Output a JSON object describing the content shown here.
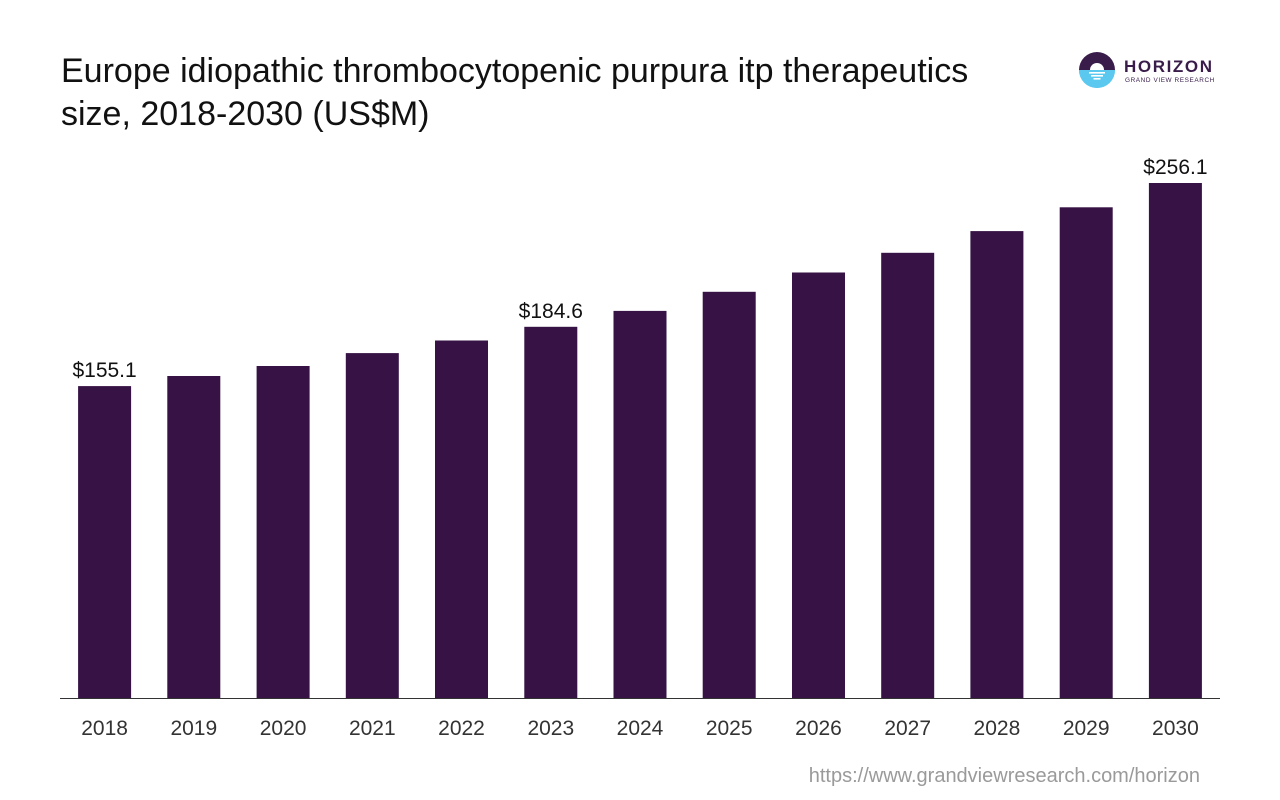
{
  "header": {
    "title_line1": "Europe idiopathic thrombocytopenic purpura itp therapeutics",
    "title_line2": "size, 2018-2030 (US$M)"
  },
  "brand": {
    "name": "HORIZON",
    "sub": "GRAND VIEW RESEARCH",
    "mark_dark": "#3a1c4b",
    "mark_light": "#5bc8f0"
  },
  "footer": {
    "source_url": "https://www.grandviewresearch.com/horizon"
  },
  "colors": {
    "bar": "#361245",
    "axis": "#333333",
    "tick_text": "#333333"
  },
  "chart_data": {
    "type": "bar",
    "title": "Europe idiopathic thrombocytopenic purpura itp therapeutics size, 2018-2030 (US$M)",
    "xlabel": "",
    "ylabel": "",
    "categories": [
      "2018",
      "2019",
      "2020",
      "2021",
      "2022",
      "2023",
      "2024",
      "2025",
      "2026",
      "2027",
      "2028",
      "2029",
      "2030"
    ],
    "values": [
      155.1,
      160.1,
      165.1,
      171.5,
      177.8,
      184.6,
      192.5,
      202.0,
      211.6,
      221.4,
      232.2,
      244.0,
      256.1
    ],
    "data_labels": [
      {
        "index": 0,
        "text": "$155.1"
      },
      {
        "index": 5,
        "text": "$184.6"
      },
      {
        "index": 12,
        "text": "$256.1"
      }
    ],
    "ylim": [
      0,
      256.1
    ],
    "grid": false,
    "legend": "none"
  }
}
